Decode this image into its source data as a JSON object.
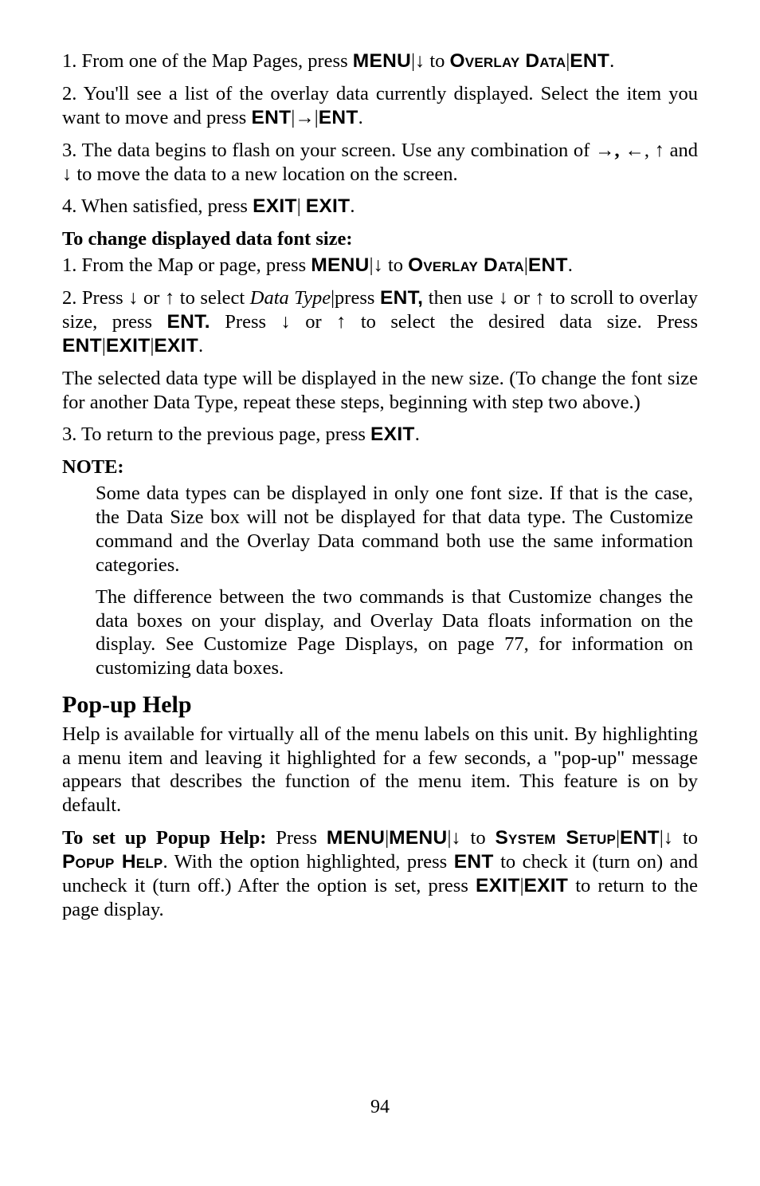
{
  "step1": {
    "prefix": "1. From one of the Map Pages, press ",
    "menu": "MENU",
    "pipe_to": "|",
    "to": " to ",
    "overlay": "Overlay Data",
    "pipe": "|",
    "ent": "ENT",
    "dot": "."
  },
  "step2": {
    "line1a": "2. You'll see a list of the overlay data currently displayed. Select the item you want to move and press ",
    "ent1": "ENT",
    "pipe1": "|",
    "arrow_r": "→",
    "pipe2": "|",
    "ent2": "ENT",
    "dot": "."
  },
  "step3": {
    "prefix": "3. The data begins to flash on your screen. Use any combination of ",
    "ar_r": "→",
    "comma_bold": ",",
    "ar_l": "←",
    "comma": ", ",
    "ar_u": "↑",
    "and": " and ",
    "ar_d": "↓",
    "suffix": " to move the data to a new location on the screen."
  },
  "step4": {
    "prefix": "4. When satisfied, press ",
    "exit1": "EXIT",
    "pipe": "| ",
    "exit2": "EXIT",
    "dot": "."
  },
  "changeHeading": "To change displayed data font size:",
  "c1": {
    "prefix": "1. From the Map or  page, press ",
    "menu": "MENU",
    "pipe_to": "|",
    "to": " to ",
    "overlay": "Overlay Data",
    "pipe": "|",
    "ent": "ENT",
    "dot": "."
  },
  "c2": {
    "prefix": "2. Press ",
    "d1": "↓",
    "or1": " or ",
    "u1": "↑",
    "sel": " to select ",
    "datatype": "Data Type",
    "pipe1": "|",
    "press1": "press ",
    "ent1": "ENT,",
    "then": " then use ",
    "d2": "↓",
    "or2": " or ",
    "u2": "↑",
    "scroll": " to scroll to overlay size, press ",
    "ent2": "ENT.",
    "press2": " Press ",
    "d3": "↓",
    "or3": " or ",
    "u3": "↑",
    "select2": " to select the desired data size. Press ",
    "ent3": "ENT",
    "p1": "|",
    "ex1": "EXIT",
    "p2": "|",
    "ex2": "EXIT",
    "dot": "."
  },
  "c2b": "The selected data type will be displayed in the new size. (To change the font size for another Data Type, repeat these steps, beginning with step two above.)",
  "c3": {
    "prefix": "3. To return to the previous page, press ",
    "exit": "EXIT",
    "dot": "."
  },
  "noteLabel": "NOTE:",
  "note1": "Some data types can be displayed in only one font size. If that is the case, the Data Size box will not be displayed for that data type. The Customize command and the Overlay Data command both use the same information categories.",
  "note2": "The difference between the two commands is that Customize changes the data boxes on your display, and Overlay Data floats information on the display. See Customize Page Displays, on page 77, for information on customizing data boxes.",
  "popupHeading": "Pop-up Help",
  "popupPara": "Help is available for virtually all of the menu labels on this unit. By highlighting a menu item and leaving it highlighted for a few seconds, a \"pop-up\" message appears that describes the function of the menu item. This feature is on by default.",
  "popupSetup": {
    "prefix": "To set up Popup Help:",
    "press": " Press ",
    "menu1": "MENU",
    "p1": "|",
    "menu2": "MENU",
    "p2": "|",
    "to": " to ",
    "sys": "System Setup",
    "p3": "|",
    "ent": "ENT",
    "p4": "|",
    "to2": " to ",
    "ph": "Popup Help",
    "mid": ". With the option highlighted, press ",
    "ent2": "ENT",
    "mid2": " to check it (turn on) and uncheck it (turn off.) After the option is set, press ",
    "ex1": "EXIT",
    "p5": "|",
    "ex2": "EXIT",
    "end": " to return to the page display."
  },
  "pageNumber": "94",
  "arrows": {
    "down": "↓",
    "right": "→",
    "left": "←",
    "up": "↑"
  }
}
